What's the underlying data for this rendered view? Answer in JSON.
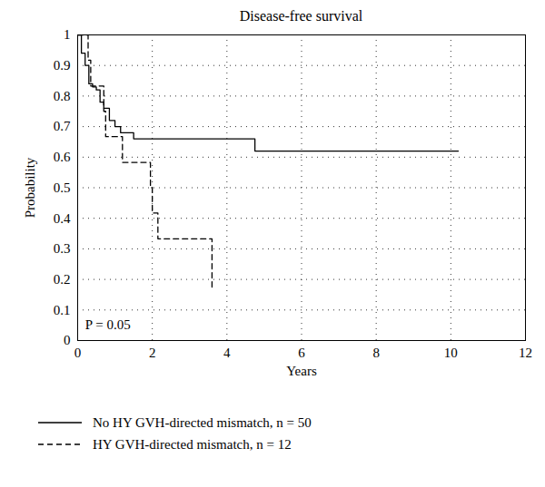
{
  "chart_data": {
    "type": "line",
    "title": "Disease-free survival",
    "x_label": "Years",
    "y_label": "Probability",
    "xlim": [
      0,
      12
    ],
    "xticks": [
      0,
      2,
      4,
      6,
      8,
      10,
      12
    ],
    "ylim": [
      0,
      1
    ],
    "yticks": [
      0,
      0.1,
      0.2,
      0.3,
      0.4,
      0.5,
      0.6,
      0.7,
      0.8,
      0.9,
      1
    ],
    "grid": true,
    "legend": "bottom",
    "annotations": [
      {
        "text": "P = 0.05",
        "x": 0.2,
        "y": 0.05
      }
    ],
    "series": [
      {
        "name": "No HY GVH-directed mismatch, n = 50",
        "color": "#000000",
        "line_style": "solid",
        "x": [
          0,
          0.1,
          0.2,
          0.3,
          0.4,
          0.5,
          0.6,
          0.7,
          0.85,
          1.0,
          1.15,
          1.5,
          4.75,
          10.2
        ],
        "values": [
          1,
          0.94,
          0.9,
          0.84,
          0.83,
          0.82,
          0.78,
          0.76,
          0.72,
          0.7,
          0.68,
          0.66,
          0.62,
          0.62
        ]
      },
      {
        "name": "HY GVH-directed mismatch, n = 12",
        "color": "#000000",
        "line_style": "dashed",
        "x": [
          0,
          0.28,
          0.35,
          0.7,
          0.75,
          1.2,
          1.95,
          2.0,
          2.15,
          3.6
        ],
        "values": [
          1,
          0.917,
          0.833,
          0.75,
          0.667,
          0.583,
          0.5,
          0.417,
          0.333,
          0.167
        ]
      }
    ]
  }
}
